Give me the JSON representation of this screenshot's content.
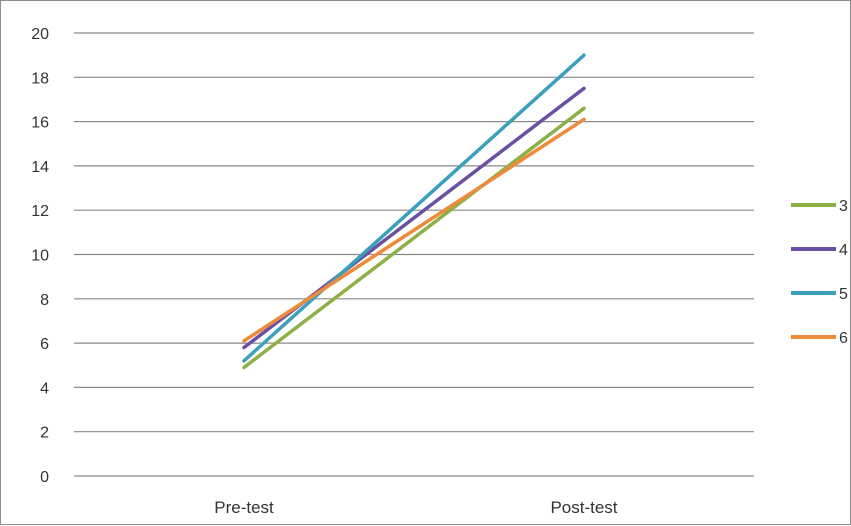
{
  "chart_data": {
    "type": "line",
    "categories": [
      "Pre-test",
      "Post-test"
    ],
    "ylim": [
      0,
      20
    ],
    "ytick_step": 2,
    "grid": true,
    "legend_placement": "right",
    "series": [
      {
        "name": "3",
        "color": "#8db046",
        "values": [
          4.9,
          16.6
        ]
      },
      {
        "name": "4",
        "color": "#6a4fa3",
        "values": [
          5.8,
          17.5
        ]
      },
      {
        "name": "5",
        "color": "#3aa0bb",
        "values": [
          5.2,
          19.0
        ]
      },
      {
        "name": "6",
        "color": "#ee8a3b",
        "values": [
          6.1,
          16.1
        ]
      }
    ],
    "title": "",
    "xlabel": "",
    "ylabel": ""
  }
}
